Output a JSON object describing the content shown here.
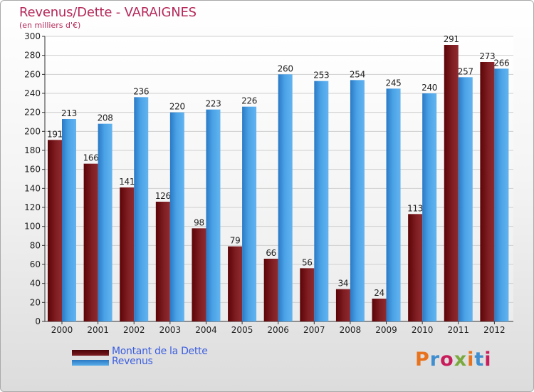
{
  "title": "Revenus/Dette - VARAIGNES",
  "subtitle": "(en milliers d'€)",
  "logo": {
    "text": "Proxiti",
    "colors": [
      "#e8731e",
      "#3f8ecf",
      "#c81c5b",
      "#7aa93d",
      "#e8731e",
      "#3f8ecf",
      "#c81c5b"
    ]
  },
  "legend": {
    "items": [
      {
        "label": "Montant de la Dette",
        "color": "#6a0d10"
      },
      {
        "label": "Revenus",
        "color": "#3a8fd8"
      }
    ]
  },
  "chart_data": {
    "type": "bar",
    "title": "Revenus/Dette - VARAIGNES",
    "subtitle": "(en milliers d'€)",
    "categories": [
      "2000",
      "2001",
      "2002",
      "2003",
      "2004",
      "2005",
      "2006",
      "2007",
      "2008",
      "2009",
      "2010",
      "2011",
      "2012"
    ],
    "series": [
      {
        "name": "Montant de la Dette",
        "color": "#6a0d10",
        "values": [
          191,
          166,
          141,
          126,
          98,
          79,
          66,
          56,
          34,
          24,
          113,
          291,
          273
        ]
      },
      {
        "name": "Revenus",
        "color": "#3a8fd8",
        "values": [
          213,
          208,
          236,
          220,
          223,
          226,
          260,
          253,
          254,
          245,
          240,
          257,
          266
        ]
      }
    ],
    "ylim": [
      0,
      300
    ],
    "yticks": [
      0,
      20,
      40,
      60,
      80,
      100,
      120,
      140,
      160,
      180,
      200,
      220,
      240,
      260,
      280,
      300
    ],
    "grid": true,
    "legend_position": "bottom-left",
    "data_labels": true
  }
}
